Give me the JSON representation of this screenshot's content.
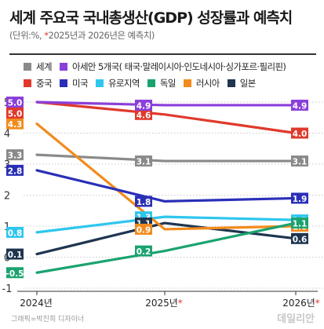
{
  "title": "세계 주요국 국내총생산(GDP) 성장률과 예측치",
  "subtitle": {
    "prefix": "(단위:%,  ",
    "star": "*",
    "suffix": "2025년과 2026년은 예측치)"
  },
  "footer": {
    "credit": "그래픽=박진희 디자이너",
    "logo": "데일리안"
  },
  "chart_data": {
    "type": "line",
    "title": "세계 주요국 국내총생산(GDP) 성장률과 예측치",
    "subtitle": "(단위:%, *2025년과 2026년은 예측치)",
    "xlabel": "",
    "ylabel": "",
    "categories": [
      "2024년",
      "2025년*",
      "2026년*"
    ],
    "ylim": [
      -1,
      5
    ],
    "yticks": [
      -1,
      0,
      1,
      2,
      3,
      4,
      5
    ],
    "grid": true,
    "legend_position": "top",
    "series": [
      {
        "name": "세계",
        "color": "#8a8a8a",
        "values": [
          3.3,
          3.1,
          3.1
        ],
        "labels": [
          "3.3",
          "3.1",
          "3.1"
        ]
      },
      {
        "name": "아세안 5개국( 태국·말레이시아·인도네시아·싱가포르·필리핀)",
        "color": "#8b3fd9",
        "values": [
          5.0,
          4.9,
          4.9
        ],
        "labels": [
          "5.0",
          "4.9",
          "4.9"
        ]
      },
      {
        "name": "중국",
        "color": "#e0392b",
        "values": [
          5.0,
          4.6,
          4.0
        ],
        "labels": [
          "5.0",
          "4.6",
          "4.0"
        ]
      },
      {
        "name": "미국",
        "color": "#2a2fb8",
        "values": [
          2.8,
          1.8,
          1.9
        ],
        "labels": [
          "2.8",
          "1.8",
          "1.9"
        ]
      },
      {
        "name": "유로지역",
        "color": "#2fc6ee",
        "values": [
          0.8,
          1.3,
          1.2
        ],
        "labels": [
          "0.8",
          "1.3",
          "1.2"
        ]
      },
      {
        "name": "독일",
        "color": "#1aa36f",
        "values": [
          -0.5,
          0.2,
          1.1
        ],
        "labels": [
          "-0.5",
          "0.2",
          "1.1"
        ]
      },
      {
        "name": "러시아",
        "color": "#f28b1c",
        "values": [
          4.3,
          0.9,
          1.0
        ],
        "labels": [
          "4.3",
          "0.9",
          "1.0"
        ]
      },
      {
        "name": "일본",
        "color": "#1f3550",
        "values": [
          0.1,
          1.1,
          0.6
        ],
        "labels": [
          "0.1",
          "1.1",
          "0.6"
        ]
      }
    ]
  }
}
